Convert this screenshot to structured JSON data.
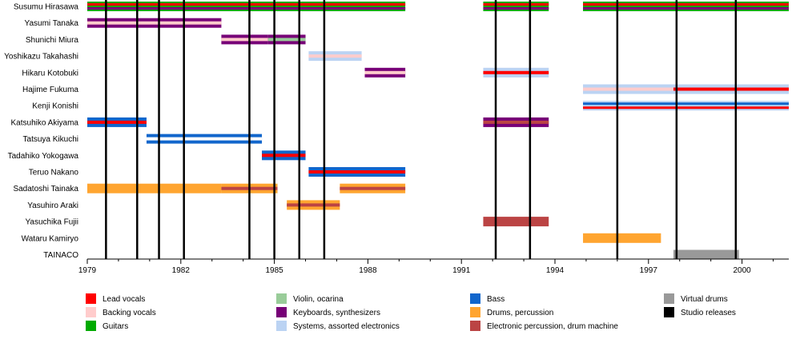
{
  "colors": {
    "lead_vocals": "#ff0000",
    "backing_vocals": "#ffcccc",
    "guitars": "#00aa00",
    "violin": "#99cc99",
    "keyboards": "#770077",
    "systems": "#bbd3f3",
    "bass": "#1166cc",
    "drums": "#ffa530",
    "electronic_percussion": "#bb4444",
    "virtual_drums": "#999999",
    "studio_releases": "#000000"
  },
  "chart_data": {
    "type": "timeline",
    "title": "",
    "xlabel": "",
    "ylabel": "",
    "xlim": [
      1979,
      2001.5
    ],
    "x_ticks": [
      "1979",
      "1982",
      "1985",
      "1988",
      "1991",
      "1994",
      "1997",
      "2000"
    ],
    "members": [
      "Susumu Hirasawa",
      "Yasumi Tanaka",
      "Shunichi Miura",
      "Yoshikazu Takahashi",
      "Hikaru Kotobuki",
      "Hajime Fukuma",
      "Kenji Konishi",
      "Katsuhiko Akiyama",
      "Tatsuya Kikuchi",
      "Tadahiko Yokogawa",
      "Teruo Nakano",
      "Sadatoshi Tainaka",
      "Yasuhiro Araki",
      "Yasuchika Fujii",
      "Wataru Kamiryo",
      "TAINACO"
    ],
    "legend": [
      {
        "label": "Lead vocals",
        "color": "#ff0000"
      },
      {
        "label": "Backing vocals",
        "color": "#ffcccc"
      },
      {
        "label": "Guitars",
        "color": "#00aa00"
      },
      {
        "label": "Violin, ocarina",
        "color": "#99cc99"
      },
      {
        "label": "Keyboards, synthesizers",
        "color": "#770077"
      },
      {
        "label": "Systems, assorted electronics",
        "color": "#bbd3f3"
      },
      {
        "label": "Bass",
        "color": "#1166cc"
      },
      {
        "label": "Drums, percussion",
        "color": "#ffa530"
      },
      {
        "label": "Electronic percussion, drum machine",
        "color": "#bb4444"
      },
      {
        "label": "Virtual drums",
        "color": "#999999"
      },
      {
        "label": "Studio releases",
        "color": "#000000"
      }
    ],
    "studio_releases": [
      1979.6,
      1980.6,
      1981.3,
      1982.1,
      1984.2,
      1985.0,
      1985.8,
      1986.6,
      1992.1,
      1993.2,
      1996.0,
      1997.9,
      1999.8
    ],
    "bars": [
      {
        "member": 0,
        "start": 1979.0,
        "end": 1989.2,
        "base": "#00aa00",
        "stripes": [
          "#ff0000",
          "#770077"
        ]
      },
      {
        "member": 0,
        "start": 1991.7,
        "end": 1993.8,
        "base": "#00aa00",
        "stripes": [
          "#ff0000",
          "#770077"
        ]
      },
      {
        "member": 0,
        "start": 1994.9,
        "end": 2001.5,
        "base": "#00aa00",
        "stripes": [
          "#ff0000",
          "#770077"
        ]
      },
      {
        "member": 1,
        "start": 1979.0,
        "end": 1983.3,
        "base": "#770077",
        "stripes": [
          "#ffcccc"
        ]
      },
      {
        "member": 2,
        "start": 1983.3,
        "end": 1984.8,
        "base": "#770077",
        "stripes": [
          "#ffcccc"
        ]
      },
      {
        "member": 2,
        "start": 1984.8,
        "end": 1986.0,
        "base": "#770077",
        "stripes": [
          "#99cc99"
        ]
      },
      {
        "member": 3,
        "start": 1986.1,
        "end": 1987.8,
        "base": "#bbd3f3",
        "stripes": [
          "#ffcccc"
        ]
      },
      {
        "member": 4,
        "start": 1987.9,
        "end": 1989.2,
        "base": "#770077",
        "stripes": [
          "#ffcccc"
        ]
      },
      {
        "member": 4,
        "start": 1991.7,
        "end": 1993.8,
        "base": "#bbd3f3",
        "stripes": [
          "#ff0000"
        ]
      },
      {
        "member": 5,
        "start": 1994.9,
        "end": 1997.8,
        "base": "#bbd3f3",
        "stripes": [
          "#ffcccc"
        ]
      },
      {
        "member": 5,
        "start": 1997.8,
        "end": 2001.5,
        "base": "#bbd3f3",
        "stripes": [
          "#ff0000"
        ]
      },
      {
        "member": 6,
        "start": 1994.9,
        "end": 2001.5,
        "base": "#bbd3f3",
        "stripes": [
          "#1166cc",
          "#ff0000"
        ]
      },
      {
        "member": 7,
        "start": 1979.0,
        "end": 1980.9,
        "base": "#1166cc",
        "stripes": [
          "#ff0000"
        ]
      },
      {
        "member": 7,
        "start": 1991.7,
        "end": 1993.8,
        "base": "#770077",
        "stripes": [
          "#bb4444"
        ]
      },
      {
        "member": 8,
        "start": 1980.9,
        "end": 1984.6,
        "base": "#1166cc",
        "stripes": [
          "#ffffff"
        ]
      },
      {
        "member": 9,
        "start": 1984.6,
        "end": 1986.0,
        "base": "#1166cc",
        "stripes": [
          "#ff0000"
        ]
      },
      {
        "member": 10,
        "start": 1986.1,
        "end": 1989.2,
        "base": "#1166cc",
        "stripes": [
          "#ff0000"
        ]
      },
      {
        "member": 11,
        "start": 1979.0,
        "end": 1983.3,
        "base": "#ffa530",
        "stripes": []
      },
      {
        "member": 11,
        "start": 1983.3,
        "end": 1985.1,
        "base": "#ffa530",
        "stripes": [
          "#bb4444"
        ]
      },
      {
        "member": 11,
        "start": 1987.1,
        "end": 1989.2,
        "base": "#ffa530",
        "stripes": [
          "#bb4444"
        ]
      },
      {
        "member": 12,
        "start": 1985.4,
        "end": 1987.1,
        "base": "#ffa530",
        "stripes": [
          "#bb4444"
        ]
      },
      {
        "member": 13,
        "start": 1991.7,
        "end": 1993.8,
        "base": "#bb4444",
        "stripes": []
      },
      {
        "member": 14,
        "start": 1994.9,
        "end": 1997.4,
        "base": "#ffa530",
        "stripes": []
      },
      {
        "member": 15,
        "start": 1997.8,
        "end": 1999.9,
        "base": "#999999",
        "stripes": []
      }
    ]
  }
}
